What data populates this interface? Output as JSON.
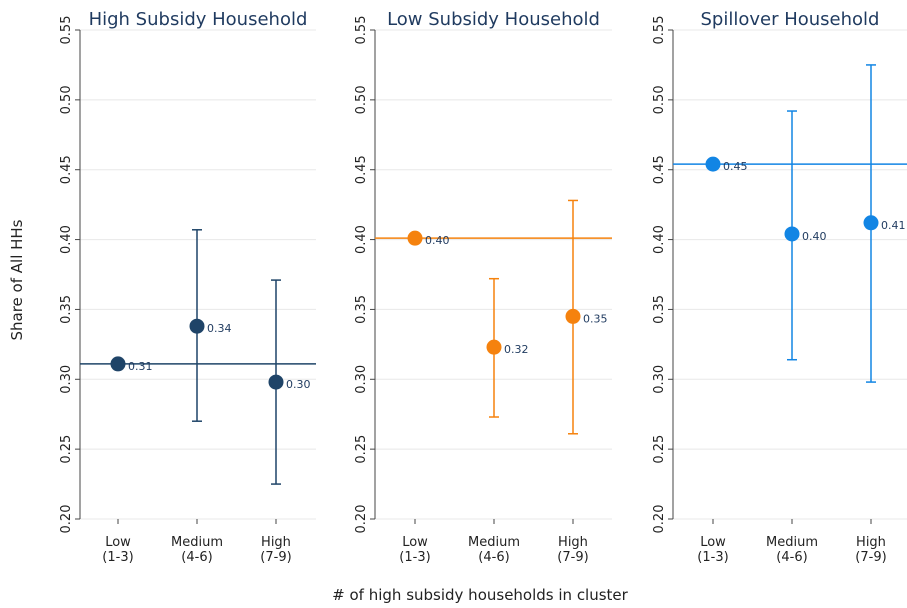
{
  "figure": {
    "ylabel": "Share of All HHs",
    "xlabel": "# of high subsidy households in cluster"
  },
  "chart_data": [
    {
      "type": "scatter",
      "title": "High Subsidy Household",
      "color": "#1f4468",
      "categories": [
        [
          "Low",
          "(1-3)"
        ],
        [
          "Medium",
          "(4-6)"
        ],
        [
          "High",
          "(7-9)"
        ]
      ],
      "values": [
        0.311,
        0.338,
        0.298
      ],
      "value_labels": [
        "0.31",
        "0.34",
        "0.30"
      ],
      "ci_low": [
        null,
        0.27,
        0.225
      ],
      "ci_high": [
        null,
        0.407,
        0.371
      ],
      "reference_line": 0.311,
      "ylim": [
        0.2,
        0.55
      ],
      "yticks": [
        "0.20",
        "0.25",
        "0.30",
        "0.35",
        "0.40",
        "0.45",
        "0.50",
        "0.55"
      ],
      "grid": true
    },
    {
      "type": "scatter",
      "title": "Low Subsidy Household",
      "color": "#f5820e",
      "categories": [
        [
          "Low",
          "(1-3)"
        ],
        [
          "Medium",
          "(4-6)"
        ],
        [
          "High",
          "(7-9)"
        ]
      ],
      "values": [
        0.401,
        0.323,
        0.345
      ],
      "value_labels": [
        "0.40",
        "0.32",
        "0.35"
      ],
      "ci_low": [
        null,
        0.273,
        0.261
      ],
      "ci_high": [
        null,
        0.372,
        0.428
      ],
      "reference_line": 0.401,
      "ylim": [
        0.2,
        0.55
      ],
      "yticks": [
        "0.20",
        "0.25",
        "0.30",
        "0.35",
        "0.40",
        "0.45",
        "0.50",
        "0.55"
      ],
      "grid": true
    },
    {
      "type": "scatter",
      "title": "Spillover Household",
      "color": "#1285e4",
      "categories": [
        [
          "Low",
          "(1-3)"
        ],
        [
          "Medium",
          "(4-6)"
        ],
        [
          "High",
          "(7-9)"
        ]
      ],
      "values": [
        0.454,
        0.404,
        0.412
      ],
      "value_labels": [
        "0.45",
        "0.40",
        "0.41"
      ],
      "ci_low": [
        null,
        0.314,
        0.298
      ],
      "ci_high": [
        null,
        0.492,
        0.525
      ],
      "reference_line": 0.454,
      "ylim": [
        0.2,
        0.55
      ],
      "yticks": [
        "0.20",
        "0.25",
        "0.30",
        "0.35",
        "0.40",
        "0.45",
        "0.50",
        "0.55"
      ],
      "grid": true
    }
  ]
}
